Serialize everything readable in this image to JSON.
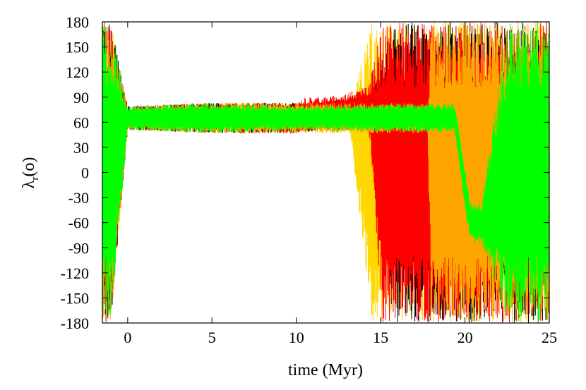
{
  "chart_data": {
    "type": "line",
    "title": "",
    "xlabel": "time (Myr)",
    "ylabel": {
      "symbol": "λ",
      "subscript": "r",
      "unit": "(o)"
    },
    "xlim": [
      -1.5,
      25
    ],
    "ylim": [
      -180,
      180
    ],
    "xticks": [
      0,
      5,
      10,
      15,
      20,
      25
    ],
    "yticks": [
      180,
      150,
      120,
      90,
      60,
      30,
      0,
      -30,
      -60,
      -90,
      -120,
      -150,
      -180
    ],
    "grid": false,
    "legend": "none",
    "series": [
      {
        "color": "#ffd700",
        "x": [
          -1.5,
          -1.0,
          0,
          5,
          10,
          13.2,
          14.5,
          25
        ],
        "y_center": [
          0,
          0,
          65,
          65,
          65,
          65,
          0,
          0
        ],
        "amplitude": [
          180,
          180,
          12,
          18,
          18,
          18,
          180,
          180
        ]
      },
      {
        "color": "#000000",
        "x": [
          -1.5,
          -1.0,
          0,
          5,
          10,
          14.5,
          15.6,
          25
        ],
        "y_center": [
          0,
          0,
          65,
          65,
          65,
          72,
          0,
          0
        ],
        "amplitude": [
          180,
          180,
          14,
          18,
          18,
          18,
          180,
          180
        ]
      },
      {
        "color": "#ff0000",
        "x": [
          -1.5,
          -1.0,
          0,
          5,
          10,
          10.5,
          12.5,
          14.3,
          15.1,
          25
        ],
        "y_center": [
          0,
          0,
          65,
          65,
          65,
          70,
          72,
          78,
          0,
          0
        ],
        "amplitude": [
          180,
          180,
          14,
          18,
          18,
          20,
          20,
          25,
          180,
          180
        ]
      },
      {
        "color": "#ffa500",
        "x": [
          -1.5,
          -1.0,
          0,
          5,
          10,
          17.8,
          18.0,
          25
        ],
        "y_center": [
          0,
          0,
          65,
          65,
          65,
          65,
          0,
          0
        ],
        "amplitude": [
          180,
          180,
          14,
          18,
          18,
          18,
          180,
          180
        ]
      },
      {
        "color": "#00ff00",
        "x": [
          -1.5,
          -1.0,
          0,
          5,
          10,
          19.4,
          20.3,
          21.0,
          22.5,
          25
        ],
        "y_center": [
          0,
          0,
          65,
          65,
          65,
          65,
          -60,
          -60,
          0,
          0
        ],
        "amplitude": [
          180,
          180,
          14,
          18,
          14,
          18,
          25,
          25,
          180,
          180
        ]
      }
    ]
  }
}
